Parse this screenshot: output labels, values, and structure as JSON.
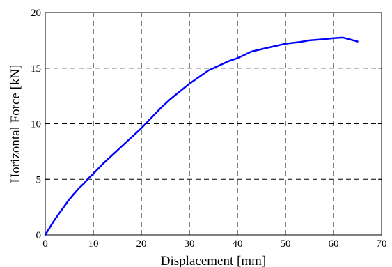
{
  "chart_data": {
    "type": "line",
    "title": "",
    "xlabel": "Displacement [mm]",
    "ylabel": "Horizontal Force [kN]",
    "xlim": [
      0,
      70
    ],
    "ylim": [
      0,
      20
    ],
    "xticks": [
      0,
      10,
      20,
      30,
      40,
      50,
      60,
      70
    ],
    "yticks": [
      0,
      5,
      10,
      15,
      20
    ],
    "grid": true,
    "series": [
      {
        "color": "#0000ff",
        "x": [
          0,
          1,
          2,
          3,
          4,
          5,
          6,
          7,
          8,
          9,
          10,
          12,
          14,
          15,
          17,
          19,
          20,
          22,
          24,
          26,
          28,
          30,
          32,
          34,
          36,
          38,
          40,
          41,
          42,
          43,
          45,
          46,
          48,
          50,
          53,
          55,
          58,
          60,
          62,
          65
        ],
        "y": [
          0,
          0.7,
          1.4,
          2.0,
          2.6,
          3.2,
          3.7,
          4.2,
          4.6,
          5.1,
          5.5,
          6.4,
          7.2,
          7.6,
          8.4,
          9.2,
          9.6,
          10.5,
          11.4,
          12.2,
          12.9,
          13.6,
          14.2,
          14.8,
          15.2,
          15.6,
          15.9,
          16.1,
          16.3,
          16.5,
          16.7,
          16.8,
          17.0,
          17.2,
          17.35,
          17.5,
          17.6,
          17.7,
          17.75,
          17.4
        ]
      }
    ]
  }
}
